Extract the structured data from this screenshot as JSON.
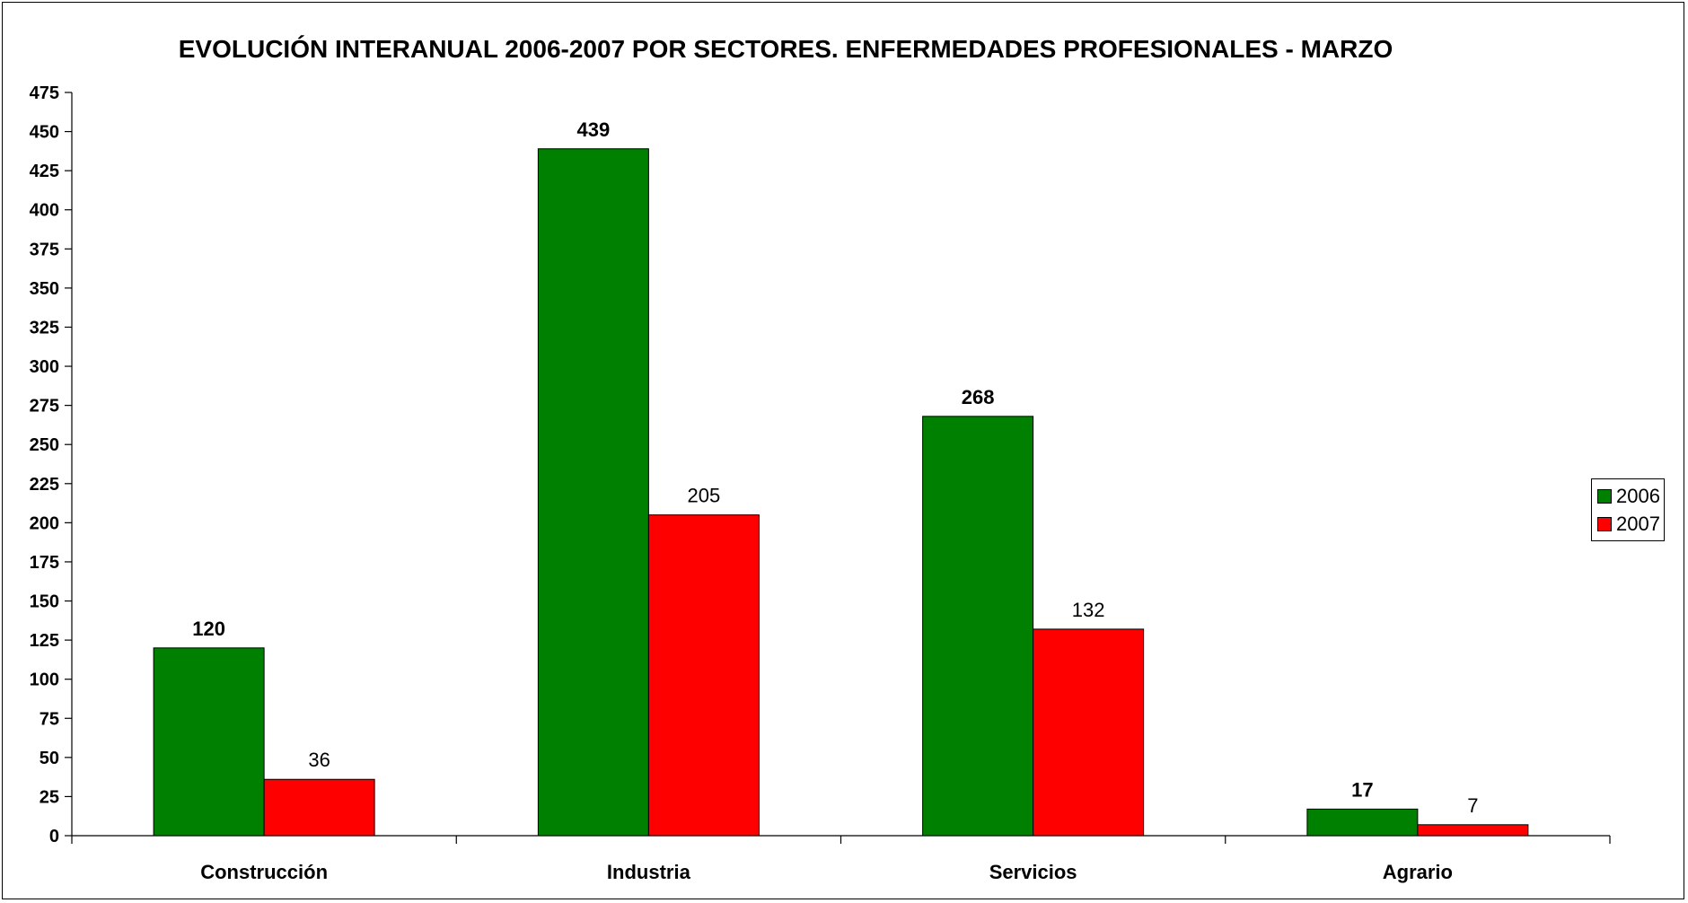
{
  "chart_data": {
    "type": "bar",
    "title": "EVOLUCIÓN INTERANUAL 2006-2007 POR SECTORES. ENFERMEDADES PROFESIONALES - MARZO",
    "categories": [
      "Construcción",
      "Industria",
      "Servicios",
      "Agrario"
    ],
    "series": [
      {
        "name": "2006",
        "values": [
          120,
          439,
          268,
          17
        ],
        "color": "#008000"
      },
      {
        "name": "2007",
        "values": [
          36,
          205,
          132,
          7
        ],
        "color": "#FF0000"
      }
    ],
    "ylim": [
      0,
      475
    ],
    "yticks": [
      0,
      25,
      50,
      75,
      100,
      125,
      150,
      175,
      200,
      225,
      250,
      275,
      300,
      325,
      350,
      375,
      400,
      425,
      450,
      475
    ],
    "grid": false,
    "legend_position": "right"
  }
}
